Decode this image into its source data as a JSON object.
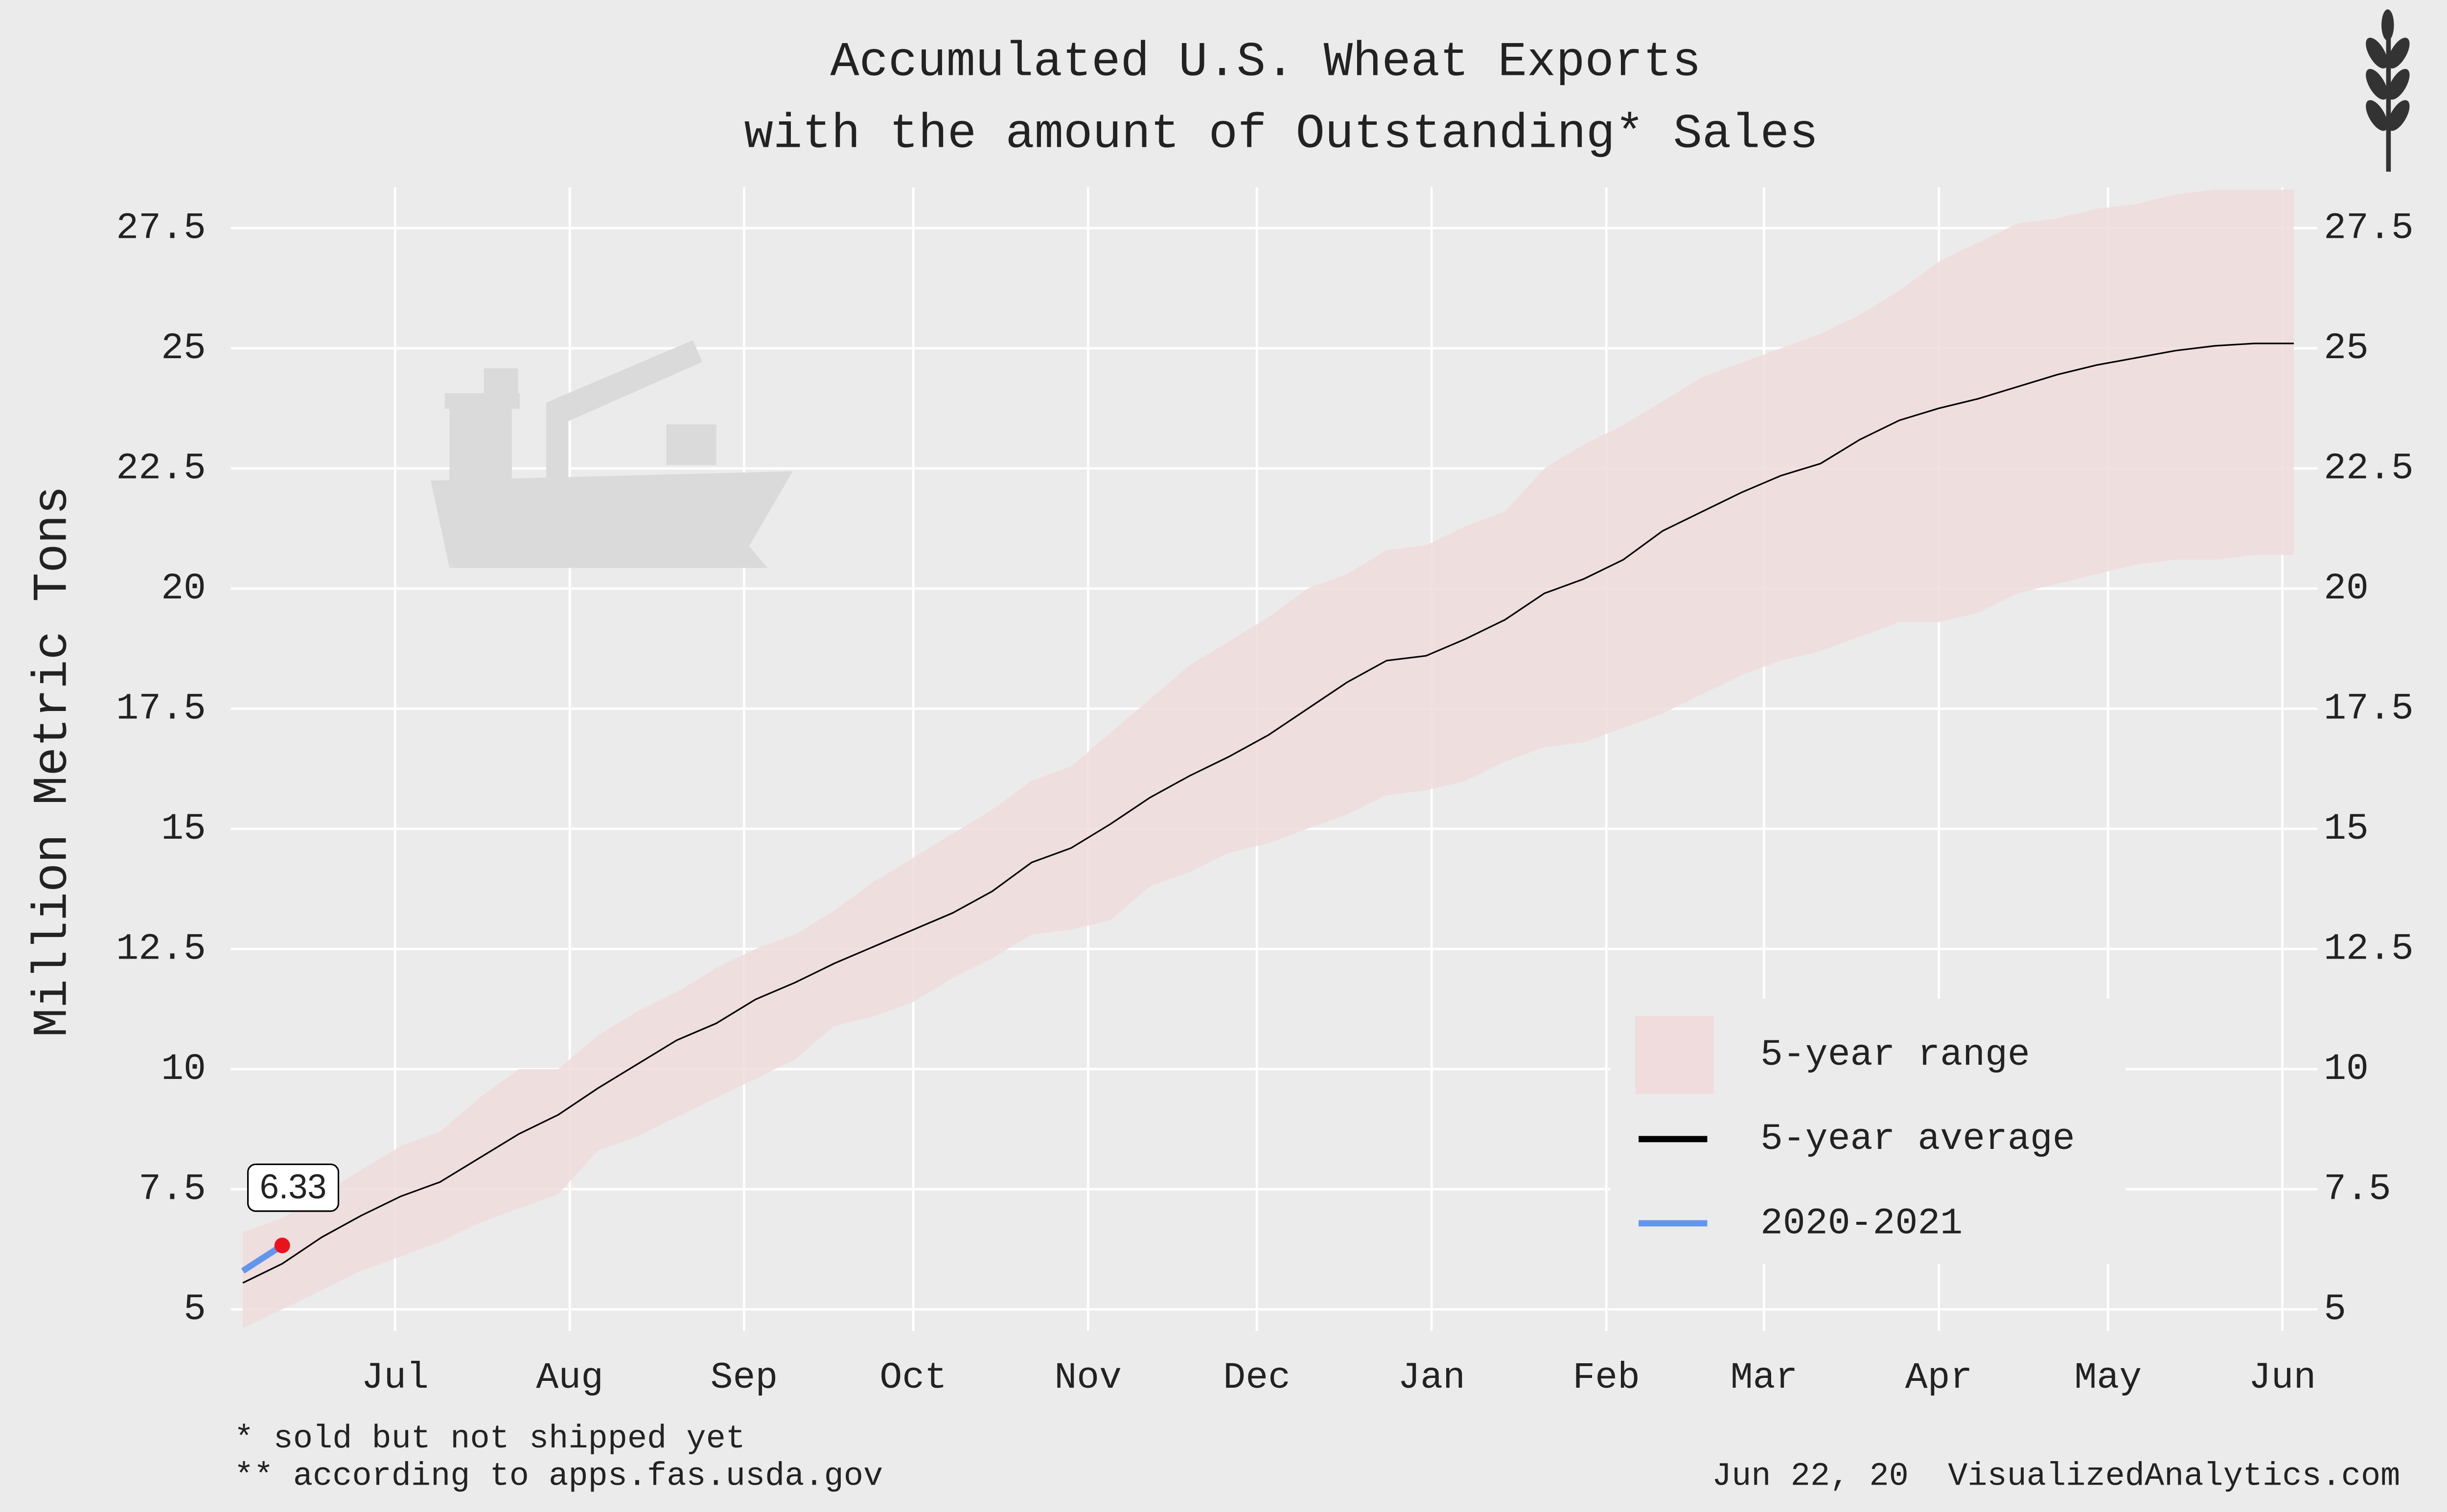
{
  "chart_data": {
    "type": "band-line",
    "title": "Accumulated U.S. Wheat Exports",
    "subtitle": "with the amount of Outstanding* Sales",
    "y_label": "Million Metric Tons",
    "notes": [
      "* sold but not shipped yet",
      "** according to apps.fas.usda.gov"
    ],
    "source": "Jun 22, 20  VisualizedAnalytics.com",
    "x": [
      0,
      1,
      2,
      3,
      4,
      5,
      6,
      7,
      8,
      9,
      10,
      11,
      12,
      13,
      14,
      15,
      16,
      17,
      18,
      19,
      20,
      21,
      22,
      23,
      24,
      25,
      26,
      27,
      28,
      29,
      30,
      31,
      32,
      33,
      34,
      35,
      36,
      37,
      38,
      39,
      40,
      41,
      42,
      43,
      44,
      45,
      46,
      47,
      48,
      49,
      50,
      51,
      52
    ],
    "xlim": [
      -0.3,
      52.6
    ],
    "xticks": [
      {
        "value": 3.86,
        "label": "Jul"
      },
      {
        "value": 8.29,
        "label": "Aug"
      },
      {
        "value": 12.71,
        "label": "Sep"
      },
      {
        "value": 17,
        "label": "Oct"
      },
      {
        "value": 21.43,
        "label": "Nov"
      },
      {
        "value": 25.71,
        "label": "Dec"
      },
      {
        "value": 30.14,
        "label": "Jan"
      },
      {
        "value": 34.57,
        "label": "Feb"
      },
      {
        "value": 38.57,
        "label": "Mar"
      },
      {
        "value": 43,
        "label": "Apr"
      },
      {
        "value": 47.29,
        "label": "May"
      },
      {
        "value": 51.71,
        "label": "Jun"
      }
    ],
    "ylim": [
      4.55,
      28.35
    ],
    "yticks": [
      5,
      7.5,
      10,
      12.5,
      15,
      17.5,
      20,
      22.5,
      25,
      27.5
    ],
    "grid": true,
    "legend": "bottom-right",
    "series": [
      {
        "name": "5-year range",
        "kind": "band",
        "color": "#f0dcdc",
        "low": [
          4.6,
          5.0,
          5.4,
          5.8,
          6.1,
          6.4,
          6.8,
          7.1,
          7.4,
          8.3,
          8.6,
          9.0,
          9.4,
          9.8,
          10.2,
          10.9,
          11.1,
          11.4,
          11.9,
          12.3,
          12.8,
          12.9,
          13.1,
          13.8,
          14.1,
          14.5,
          14.7,
          15.0,
          15.3,
          15.7,
          15.8,
          16.0,
          16.4,
          16.7,
          16.8,
          17.1,
          17.4,
          17.8,
          18.2,
          18.5,
          18.7,
          19.0,
          19.3,
          19.3,
          19.5,
          19.9,
          20.1,
          20.3,
          20.5,
          20.6,
          20.6,
          20.7,
          20.7
        ],
        "high": [
          6.6,
          6.9,
          7.4,
          7.9,
          8.4,
          8.7,
          9.4,
          10.0,
          10.0,
          10.7,
          11.2,
          11.6,
          12.1,
          12.5,
          12.8,
          13.3,
          13.9,
          14.4,
          14.9,
          15.4,
          16.0,
          16.3,
          17.0,
          17.7,
          18.4,
          18.9,
          19.4,
          20.0,
          20.3,
          20.8,
          20.9,
          21.3,
          21.6,
          22.5,
          23.0,
          23.4,
          23.9,
          24.4,
          24.7,
          25.0,
          25.3,
          25.7,
          26.2,
          26.8,
          27.2,
          27.6,
          27.7,
          27.9,
          28.0,
          28.2,
          28.3,
          28.3,
          28.3
        ]
      },
      {
        "name": "5-year average",
        "kind": "line",
        "color": "#000000",
        "values": [
          5.55,
          5.95,
          6.5,
          6.95,
          7.35,
          7.65,
          8.15,
          8.65,
          9.05,
          9.6,
          10.1,
          10.6,
          10.95,
          11.45,
          11.8,
          12.2,
          12.55,
          12.9,
          13.25,
          13.7,
          14.3,
          14.6,
          15.1,
          15.65,
          16.1,
          16.5,
          16.95,
          17.5,
          18.05,
          18.5,
          18.6,
          18.95,
          19.35,
          19.9,
          20.2,
          20.6,
          21.2,
          21.6,
          22.0,
          22.35,
          22.6,
          23.1,
          23.5,
          23.75,
          23.95,
          24.2,
          24.45,
          24.65,
          24.8,
          24.95,
          25.05,
          25.1,
          25.1
        ]
      },
      {
        "name": "2020-2021",
        "kind": "line",
        "color": "#6495ed",
        "marker_color": "#e8141b",
        "values": [
          5.8,
          6.33,
          null,
          null,
          null,
          null,
          null,
          null,
          null,
          null,
          null,
          null,
          null,
          null,
          null,
          null,
          null,
          null,
          null,
          null,
          null,
          null,
          null,
          null,
          null,
          null,
          null,
          null,
          null,
          null,
          null,
          null,
          null,
          null,
          null,
          null,
          null,
          null,
          null,
          null,
          null,
          null,
          null,
          null,
          null,
          null,
          null,
          null,
          null,
          null,
          null,
          null,
          null
        ]
      }
    ]
  }
}
